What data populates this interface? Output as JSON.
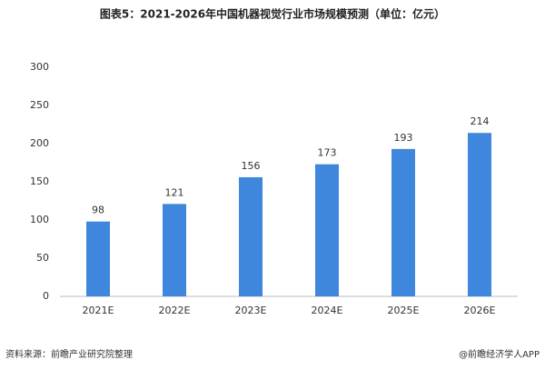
{
  "chart_data": {
    "type": "bar",
    "title": "图表5：2021-2026年中国机器视觉行业市场规模预测（单位：亿元）",
    "categories": [
      "2021E",
      "2022E",
      "2023E",
      "2024E",
      "2025E",
      "2026E"
    ],
    "values": [
      98,
      121,
      156,
      173,
      193,
      214
    ],
    "color": "#3f87dc",
    "ylim": [
      0,
      300
    ],
    "yticks": [
      0,
      50,
      100,
      150,
      200,
      250,
      300
    ],
    "grid": false,
    "source": "资料来源：前瞻产业研究院整理",
    "credit": "@前瞻经济学人APP"
  }
}
